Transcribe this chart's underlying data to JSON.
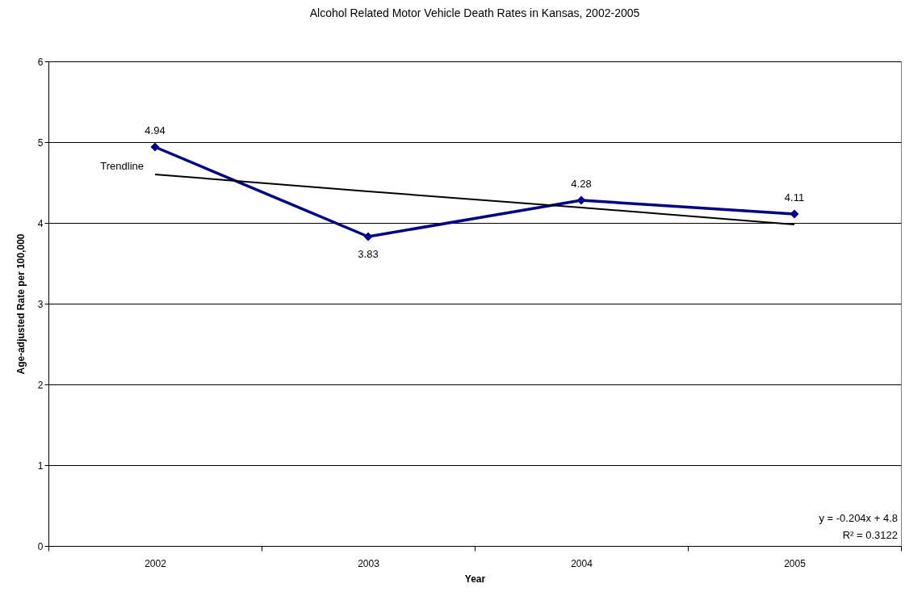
{
  "chart_data": {
    "type": "line",
    "title": "Alcohol Related Motor Vehicle Death Rates in Kansas, 2002-2005",
    "xlabel": "Year",
    "ylabel": "Age-adjusted Rate per 100,000",
    "categories": [
      "2002",
      "2003",
      "2004",
      "2005"
    ],
    "series": [
      {
        "color": "#000080",
        "values": [
          4.94,
          3.83,
          4.28,
          4.11
        ],
        "value_labels": [
          "4.94",
          "3.83",
          "4.28",
          "4.11"
        ],
        "marker": "diamond",
        "line_style": "solid"
      },
      {
        "name": "Trendline",
        "type": "line",
        "color": "#000000",
        "values": [
          4.6,
          4.39,
          4.19,
          3.98
        ],
        "marker": "none",
        "line_style": "solid"
      }
    ],
    "ylim": [
      0,
      6
    ],
    "yticks": [
      0,
      1,
      2,
      3,
      4,
      5,
      6
    ],
    "grid": "y",
    "annotations": [
      "y = -0.204x + 4.8",
      "R² = 0.3122"
    ]
  }
}
